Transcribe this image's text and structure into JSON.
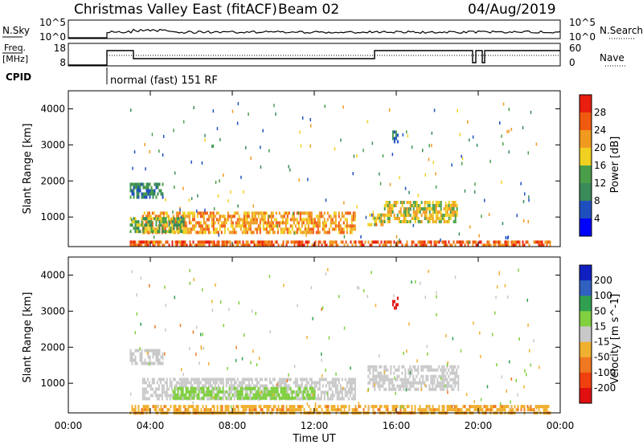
{
  "header": {
    "site": "Christmas Valley East (fitACF)",
    "beam": "Beam 02",
    "date": "04/Aug/2019"
  },
  "strips": {
    "nsky": {
      "label": "N.Sky",
      "ticks": [
        "10^5",
        "10^0"
      ],
      "right_label": "N.Search",
      "right_ticks": [
        "10^5",
        "10^0"
      ]
    },
    "freq": {
      "label_line1": "Freq.",
      "label_line2": "[MHz]",
      "ticks": [
        "18",
        "8"
      ],
      "right_label": "Nave",
      "right_ticks": [
        "60",
        "0"
      ]
    },
    "cpid": {
      "label": "CPID",
      "value": "normal (fast) 151 RF"
    }
  },
  "colors": {
    "power_scale": [
      "#0000ff",
      "#1f4fbf",
      "#3a8a5a",
      "#4a9e4a",
      "#f0d020",
      "#f09a20",
      "#f05a10",
      "#e81e10"
    ],
    "velocity_scale": [
      "#1020c0",
      "#3060c0",
      "#30a050",
      "#80d040",
      "#c8c8c8",
      "#f0b030",
      "#f07820",
      "#f04010",
      "#e01010"
    ],
    "nsky_line": "#000000"
  },
  "chart_data": [
    {
      "type": "heatmap",
      "title": "Power",
      "xlabel": "",
      "ylabel": "Slant Range [km]",
      "xlim": [
        0,
        24
      ],
      "ylim": [
        180,
        4500
      ],
      "x_ticks": [
        "00:00",
        "04:00",
        "08:00",
        "12:00",
        "16:00",
        "20:00",
        "00:00"
      ],
      "y_ticks": [
        1000,
        2000,
        3000,
        4000
      ],
      "colorbar": {
        "label": "Power [dB]",
        "ticks": [
          4,
          8,
          12,
          16,
          20,
          24,
          28
        ],
        "range": [
          0,
          32
        ]
      },
      "grid": false,
      "regions": [
        {
          "t": [
            3.0,
            4.6
          ],
          "r": [
            1550,
            1950
          ],
          "value": 10
        },
        {
          "t": [
            3.6,
            14.0
          ],
          "r": [
            550,
            1150
          ],
          "value": 22
        },
        {
          "t": [
            3.0,
            5.6
          ],
          "r": [
            600,
            1000
          ],
          "value": 14
        },
        {
          "t": [
            14.6,
            15.4
          ],
          "r": [
            800,
            1100
          ],
          "value": 20
        },
        {
          "t": [
            15.4,
            19.0
          ],
          "r": [
            850,
            1450
          ],
          "value": 18
        },
        {
          "t": [
            3.0,
            23.5
          ],
          "r": [
            200,
            350
          ],
          "value": 26
        },
        {
          "t": [
            15.8,
            16.1
          ],
          "r": [
            3100,
            3400
          ],
          "value": 10
        }
      ]
    },
    {
      "type": "heatmap",
      "title": "Velocity",
      "xlabel": "Time UT",
      "ylabel": "Slant Range [km]",
      "xlim": [
        0,
        24
      ],
      "ylim": [
        180,
        4500
      ],
      "x_ticks": [
        "00:00",
        "04:00",
        "08:00",
        "12:00",
        "16:00",
        "20:00",
        "00:00"
      ],
      "y_ticks": [
        1000,
        2000,
        3000,
        4000
      ],
      "colorbar": {
        "label": "Velocity [m s^-1]",
        "ticks": [
          200,
          100,
          50,
          15,
          -15,
          -50,
          -100,
          -200
        ]
      },
      "grid": false,
      "regions": [
        {
          "t": [
            3.0,
            4.6
          ],
          "r": [
            1550,
            1950
          ],
          "value": 0
        },
        {
          "t": [
            3.6,
            14.0
          ],
          "r": [
            550,
            1150
          ],
          "value": 0
        },
        {
          "t": [
            5.0,
            12.0
          ],
          "r": [
            600,
            900
          ],
          "value": 35
        },
        {
          "t": [
            14.6,
            19.0
          ],
          "r": [
            800,
            1500
          ],
          "value": 0
        },
        {
          "t": [
            3.0,
            23.5
          ],
          "r": [
            200,
            400
          ],
          "value": -40
        },
        {
          "t": [
            15.8,
            16.1
          ],
          "r": [
            3100,
            3400
          ],
          "value": -220
        }
      ]
    }
  ]
}
